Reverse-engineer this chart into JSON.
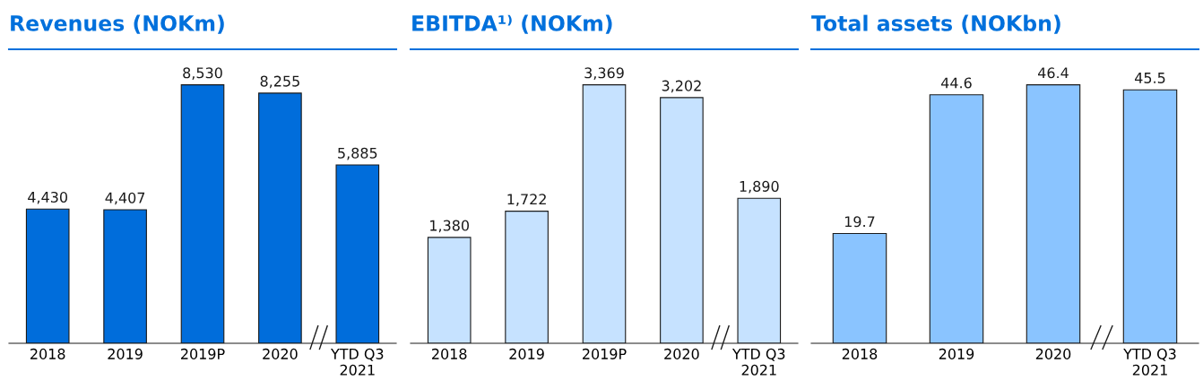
{
  "chart_data": [
    {
      "type": "bar",
      "title": "Revenues (NOKm)",
      "categories": [
        "2018",
        "2019",
        "2019P",
        "2020",
        "YTD Q3\n2021"
      ],
      "values": [
        4430,
        4407,
        8530,
        8255,
        5885
      ],
      "color": "#006ddb",
      "data_labels": true,
      "value_labels": [
        "4,430",
        "4,407",
        "8,530",
        "8,255",
        "5,885"
      ],
      "tick_labels": "x",
      "grid": false,
      "legend": false
    },
    {
      "type": "bar",
      "title": "EBITDA¹⁾ (NOKm)",
      "categories": [
        "2018",
        "2019",
        "2019P",
        "2020",
        "YTD Q3\n2021"
      ],
      "values": [
        1380,
        1722,
        3369,
        3202,
        1890
      ],
      "color": "#c6e2ff",
      "data_labels": true,
      "value_labels": [
        "1,380",
        "1,722",
        "3,369",
        "3,202",
        "1,890"
      ],
      "tick_labels": "x",
      "grid": false,
      "legend": false
    },
    {
      "type": "bar",
      "title": "Total assets (NOKbn)",
      "categories": [
        "2018",
        "2019",
        "2020",
        "YTD Q3\n2021"
      ],
      "values": [
        19.7,
        44.6,
        46.4,
        45.5
      ],
      "color": "#8ac4ff",
      "data_labels": true,
      "tick_labels": "x",
      "grid": false,
      "legend": false
    }
  ]
}
